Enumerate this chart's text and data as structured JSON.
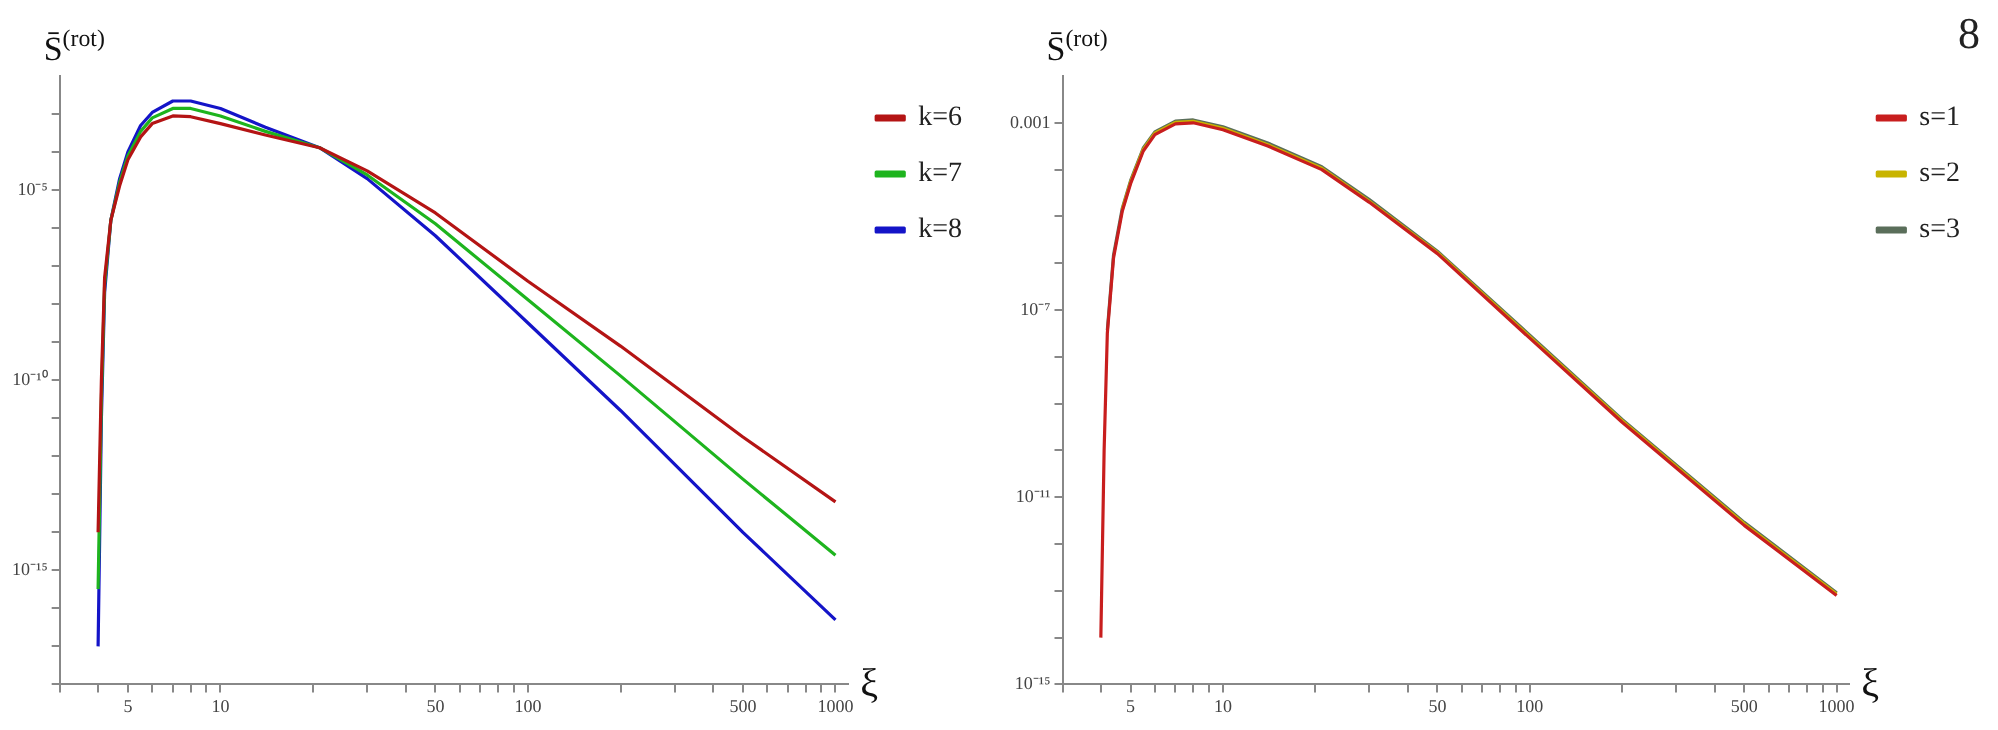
{
  "chart_data": [
    {
      "type": "line",
      "ylabel": "S̄$^{(rot)}$",
      "xlabel": "ξ",
      "log": "xy",
      "grid": false,
      "legend": "top right",
      "marker": "none",
      "line_style": "solid",
      "xlim": [
        3,
        1100
      ],
      "xticks": [
        {
          "value": 3,
          "label": null
        },
        {
          "value": 4,
          "label": null
        },
        5,
        {
          "value": 6,
          "label": null
        },
        {
          "value": 7,
          "label": null
        },
        {
          "value": 8,
          "label": null
        },
        {
          "value": 9,
          "label": null
        },
        10,
        {
          "value": 20,
          "label": null
        },
        {
          "value": 30,
          "label": null
        },
        {
          "value": 40,
          "label": null
        },
        50,
        {
          "value": 60,
          "label": null
        },
        {
          "value": 70,
          "label": null
        },
        {
          "value": 80,
          "label": null
        },
        {
          "value": 90,
          "label": null
        },
        100,
        {
          "value": 200,
          "label": null
        },
        {
          "value": 300,
          "label": null
        },
        {
          "value": 400,
          "label": null
        },
        500,
        {
          "value": 600,
          "label": null
        },
        {
          "value": 700,
          "label": null
        },
        {
          "value": 800,
          "label": null
        },
        {
          "value": 900,
          "label": null
        },
        1000
      ],
      "ylim": [
        1e-18,
        0.01
      ],
      "yticks": [
        {
          "value": 1e-18,
          "label": null
        },
        {
          "value": 1e-17,
          "label": null
        },
        {
          "value": 1e-16,
          "label": null
        },
        {
          "value": 1e-15,
          "label": "10⁻¹⁵"
        },
        {
          "value": 1e-14,
          "label": null
        },
        {
          "value": 1e-13,
          "label": null
        },
        {
          "value": 1e-12,
          "label": null
        },
        {
          "value": 1e-11,
          "label": null
        },
        {
          "value": 1e-10,
          "label": "10⁻¹⁰"
        },
        {
          "value": 1e-09,
          "label": null
        },
        {
          "value": 1e-08,
          "label": null
        },
        {
          "value": 1e-07,
          "label": null
        },
        {
          "value": 1e-06,
          "label": null
        },
        {
          "value": 1e-05,
          "label": "10⁻⁵"
        },
        {
          "value": 0.0001,
          "label": null
        },
        {
          "value": 0.001,
          "label": null
        }
      ],
      "x": [
        4,
        4.1,
        4.2,
        4.4,
        4.7,
        5,
        5.5,
        6,
        7,
        8,
        10,
        14,
        21,
        30,
        50,
        100,
        200,
        500,
        1000
      ],
      "series": [
        {
          "name": "k=6",
          "color": "#b41414",
          "values": [
            1e-14,
            1e-10,
            5e-08,
            1.6e-06,
            1.3e-05,
            6.3e-05,
            0.00025,
            0.00056,
            0.00089,
            0.00085,
            0.00056,
            0.00028,
            0.00013,
            3.2e-05,
            2.5e-06,
            4e-08,
            7.9e-10,
            3.2e-12,
            6.3e-14
          ]
        },
        {
          "name": "k=7",
          "color": "#1eb41e",
          "values": [
            3.2e-16,
            3.2e-11,
            3.2e-08,
            1.6e-06,
            1.6e-05,
            7.9e-05,
            0.00035,
            0.00079,
            0.0014,
            0.0014,
            0.00089,
            0.00035,
            0.00013,
            2.5e-05,
            1.3e-06,
            1.3e-08,
            1.3e-10,
            2.5e-13,
            2.5e-15
          ]
        },
        {
          "name": "k=8",
          "color": "#1414c8",
          "values": [
            1e-17,
            1e-11,
            2e-08,
            1.6e-06,
            2e-05,
            0.0001,
            0.0005,
            0.0011,
            0.0022,
            0.0022,
            0.0014,
            0.00045,
            0.00013,
            2e-05,
            6.3e-07,
            3.2e-09,
            1.6e-11,
            1e-14,
            5e-17
          ]
        }
      ]
    },
    {
      "type": "line",
      "ylabel": "S̄$^{(rot)}$",
      "xlabel": "ξ",
      "log": "xy",
      "grid": false,
      "legend": "top right",
      "marker": "none",
      "line_style": "solid",
      "annotations": [
        "8"
      ],
      "xlim": [
        3,
        1100
      ],
      "xticks": [
        {
          "value": 3,
          "label": null
        },
        {
          "value": 4,
          "label": null
        },
        5,
        {
          "value": 6,
          "label": null
        },
        {
          "value": 7,
          "label": null
        },
        {
          "value": 8,
          "label": null
        },
        {
          "value": 9,
          "label": null
        },
        10,
        {
          "value": 20,
          "label": null
        },
        {
          "value": 30,
          "label": null
        },
        {
          "value": 40,
          "label": null
        },
        50,
        {
          "value": 60,
          "label": null
        },
        {
          "value": 70,
          "label": null
        },
        {
          "value": 80,
          "label": null
        },
        {
          "value": 90,
          "label": null
        },
        100,
        {
          "value": 200,
          "label": null
        },
        {
          "value": 300,
          "label": null
        },
        {
          "value": 400,
          "label": null
        },
        500,
        {
          "value": 600,
          "label": null
        },
        {
          "value": 700,
          "label": null
        },
        {
          "value": 800,
          "label": null
        },
        {
          "value": 900,
          "label": null
        },
        1000
      ],
      "ylim": [
        1e-15,
        0.01
      ],
      "yticks": [
        {
          "value": 1e-15,
          "label": "10⁻¹⁵"
        },
        {
          "value": 1e-14,
          "label": null
        },
        {
          "value": 1e-13,
          "label": null
        },
        {
          "value": 1e-12,
          "label": null
        },
        {
          "value": 1e-11,
          "label": "10⁻¹¹"
        },
        {
          "value": 1e-10,
          "label": null
        },
        {
          "value": 1e-09,
          "label": null
        },
        {
          "value": 1e-08,
          "label": null
        },
        {
          "value": 1e-07,
          "label": "10⁻⁷"
        },
        {
          "value": 1e-06,
          "label": null
        },
        {
          "value": 1e-05,
          "label": null
        },
        {
          "value": 0.0001,
          "label": null
        },
        {
          "value": 0.001,
          "label": "0.001"
        }
      ],
      "x": [
        4,
        4.1,
        4.2,
        4.4,
        4.7,
        5,
        5.5,
        6,
        7,
        8,
        10,
        14,
        21,
        30,
        50,
        100,
        200,
        500,
        1000
      ],
      "series": [
        {
          "name": "s=1",
          "color": "#c81e1e",
          "values": [
            1e-14,
            1e-10,
            3.2e-08,
            1.3e-06,
            1.3e-05,
            5e-05,
            0.00025,
            0.00056,
            0.00095,
            0.001,
            0.00071,
            0.00032,
            0.0001,
            2e-05,
            1.6e-06,
            2.5e-08,
            4e-10,
            2.5e-12,
            7.9e-14
          ]
        },
        {
          "name": "s=2",
          "color": "#c8b400",
          "values": [
            null,
            null,
            null,
            null,
            1.4e-05,
            5.4e-05,
            0.00027,
            0.0006,
            0.00102,
            0.00107,
            0.00076,
            0.00034,
            0.000107,
            2.1e-05,
            1.7e-06,
            2.7e-08,
            4.3e-10,
            2.7e-12,
            8.5e-14
          ]
        },
        {
          "name": "s=3",
          "color": "#5a6e5a",
          "values": [
            null,
            null,
            3.7e-08,
            1.5e-06,
            1.5e-05,
            5.8e-05,
            0.00029,
            0.00064,
            0.00109,
            0.00115,
            0.00082,
            0.00037,
            0.000115,
            2.3e-05,
            1.8e-06,
            2.9e-08,
            4.6e-10,
            2.9e-12,
            9.1e-14
          ]
        }
      ]
    }
  ]
}
